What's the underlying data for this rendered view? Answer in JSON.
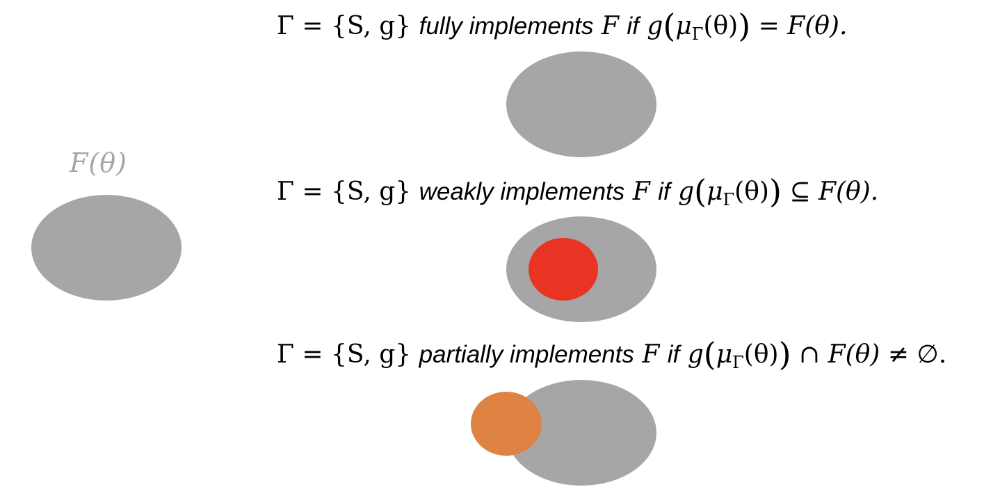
{
  "left": {
    "label": "F(θ)"
  },
  "formulas": [
    {
      "prefix": "Γ = {S, g}",
      "verb": "fully implements",
      "F": "F",
      "if": "if",
      "g": "g",
      "mu": "μ",
      "sub": "Γ",
      "theta_arg": "(θ)",
      "relation": "=",
      "rhs": "F(θ).",
      "tail": ""
    },
    {
      "prefix": "Γ = {S, g}",
      "verb": "weakly implements",
      "F": "F",
      "if": "if",
      "g": "g",
      "mu": "μ",
      "sub": "Γ",
      "theta_arg": "(θ)",
      "relation": "⊆",
      "rhs": "F(θ).",
      "tail": ""
    },
    {
      "prefix": "Γ = {S, g}",
      "verb": "partially implements",
      "F": "F",
      "if": "if",
      "g": "g",
      "mu": "μ",
      "sub": "Γ",
      "theta_arg": "(θ)",
      "relation": "∩",
      "rhs": "F(θ)",
      "tail": "≠ ∅."
    }
  ],
  "colors": {
    "gray": "#a6a6a6",
    "red": "#e93323",
    "orange": "#de8344"
  }
}
